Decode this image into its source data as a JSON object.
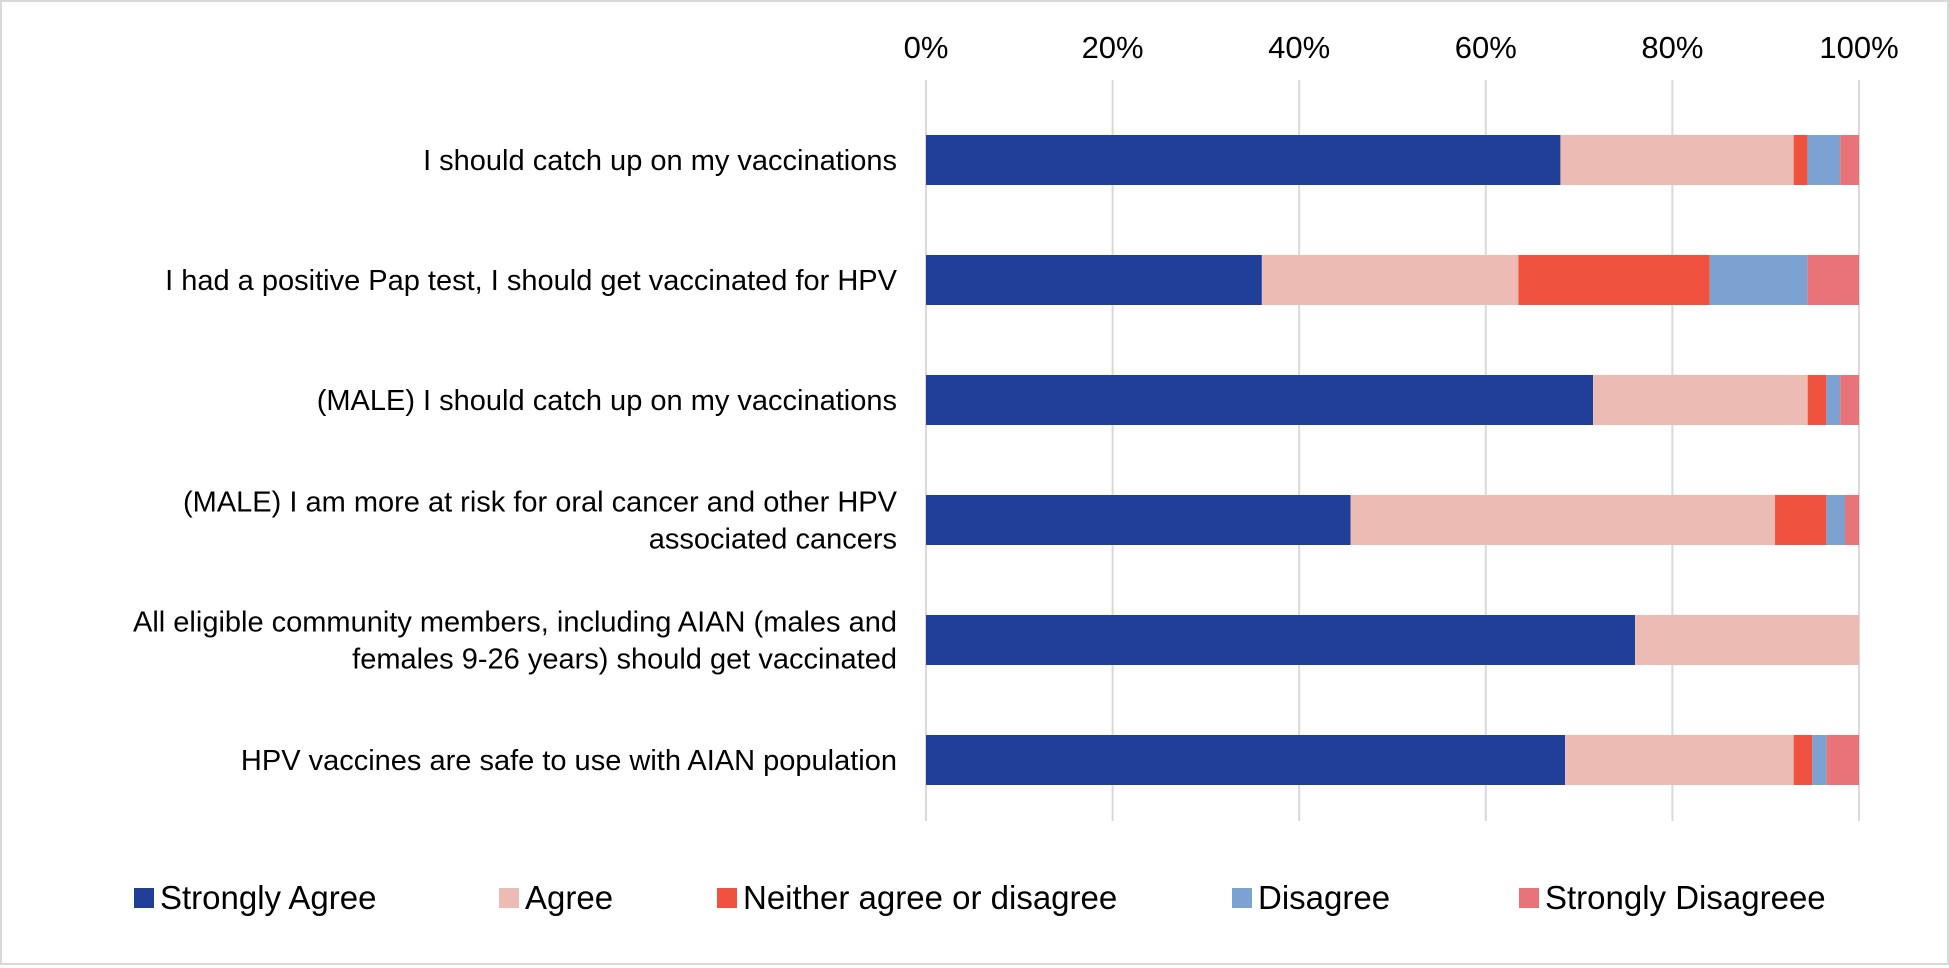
{
  "chart_data": {
    "type": "bar",
    "orientation": "horizontal",
    "stacked": "percent",
    "title": "",
    "xlabel": "",
    "ylabel": "",
    "xlim": [
      0,
      100
    ],
    "x_ticks": [
      "0%",
      "20%",
      "40%",
      "60%",
      "80%",
      "100%"
    ],
    "x_axis_position": "top",
    "grid": true,
    "legend_position": "bottom",
    "categories": [
      [
        "I should catch up on my vaccinations"
      ],
      [
        "I had a positive Pap test, I should get vaccinated for HPV"
      ],
      [
        "(MALE) I should catch up on my vaccinations"
      ],
      [
        "(MALE) I am more at risk for oral cancer and other HPV",
        "associated cancers"
      ],
      [
        "All eligible community members, including AIAN (males and",
        "females 9-26 years) should get vaccinated"
      ],
      [
        "HPV vaccines are safe to use with AIAN population"
      ]
    ],
    "series": [
      {
        "name": "Strongly Agree",
        "color": "#203f99",
        "values": [
          68,
          36,
          71.5,
          45.5,
          76,
          68.5
        ]
      },
      {
        "name": "Agree",
        "color": "#ecbcb4",
        "values": [
          25,
          27.5,
          23,
          45.5,
          24,
          24.5
        ]
      },
      {
        "name": "Neither agree or disagree",
        "color": "#ef5340",
        "values": [
          1.5,
          20.5,
          2,
          5.5,
          0,
          2
        ]
      },
      {
        "name": "Disagree",
        "color": "#7ba2d0",
        "values": [
          3.5,
          10.5,
          1.5,
          2,
          0,
          1.5
        ]
      },
      {
        "name": "Strongly Disagreee",
        "color": "#e8747a",
        "values": [
          2,
          5.5,
          2,
          1.5,
          0,
          3.5
        ]
      }
    ]
  }
}
